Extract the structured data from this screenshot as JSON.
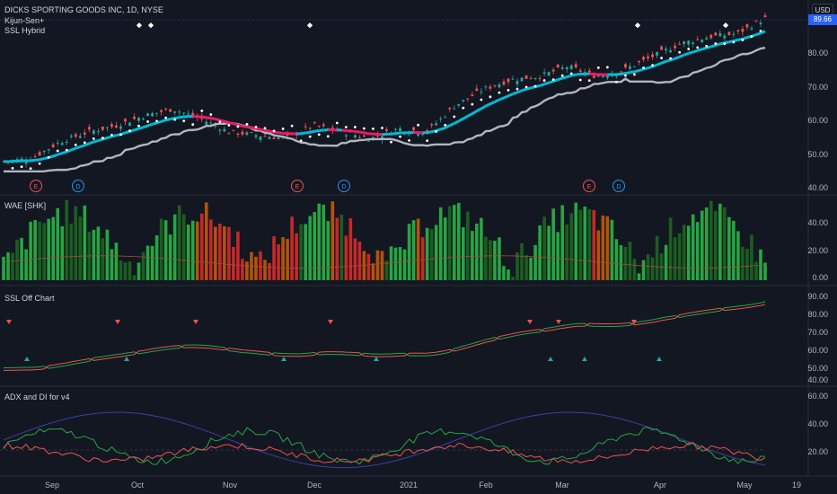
{
  "header": {
    "symbol_title": "DICKS SPORTING GOODS INC, 1D, NYSE",
    "indicator_1": "Kijun-Sen+",
    "indicator_2": "SSL Hybrid",
    "currency": "USD",
    "last_price": "89.66"
  },
  "panes": {
    "main_ticks": [
      "80.00",
      "70.00",
      "60.00",
      "50.00",
      "40.00"
    ],
    "wae_title": "WAE [SHK]",
    "wae_ticks": [
      "40.00",
      "20.00",
      "0.00"
    ],
    "ssl_title": "SSL Off Chart",
    "ssl_ticks": [
      "90.00",
      "80.00",
      "70.00",
      "60.00",
      "50.00",
      "40.00"
    ],
    "adx_title": "ADX and DI for v4",
    "adx_ticks": [
      "60.00",
      "40.00",
      "20.00"
    ]
  },
  "x_axis": [
    "Sep",
    "Oct",
    "Nov",
    "Dec",
    "2021",
    "Feb",
    "Mar",
    "Apr",
    "May",
    "19"
  ],
  "events": {
    "earnings_label": "E",
    "dividend_label": "D"
  },
  "colors": {
    "background": "#131722",
    "up": "#26a69a",
    "down": "#ef5350",
    "ssl_up": "#00bcd4",
    "ssl_down": "#e91e63",
    "kijun": "#b2b5be",
    "wae_green": "#26a641",
    "wae_red": "#c62828",
    "adx_blue": "#3f3fa6"
  },
  "chart_data": {
    "type": "line",
    "x_range": [
      "Aug",
      "May"
    ],
    "series": [
      {
        "values": [
          46,
          47,
          52,
          55,
          57,
          60,
          62,
          59,
          55,
          54,
          53,
          57,
          55,
          53,
          56,
          55,
          63,
          68,
          71,
          72,
          75,
          72,
          74,
          78,
          82,
          84,
          85,
          89.66
        ]
      }
    ],
    "ylim": [
      38,
      92
    ]
  }
}
